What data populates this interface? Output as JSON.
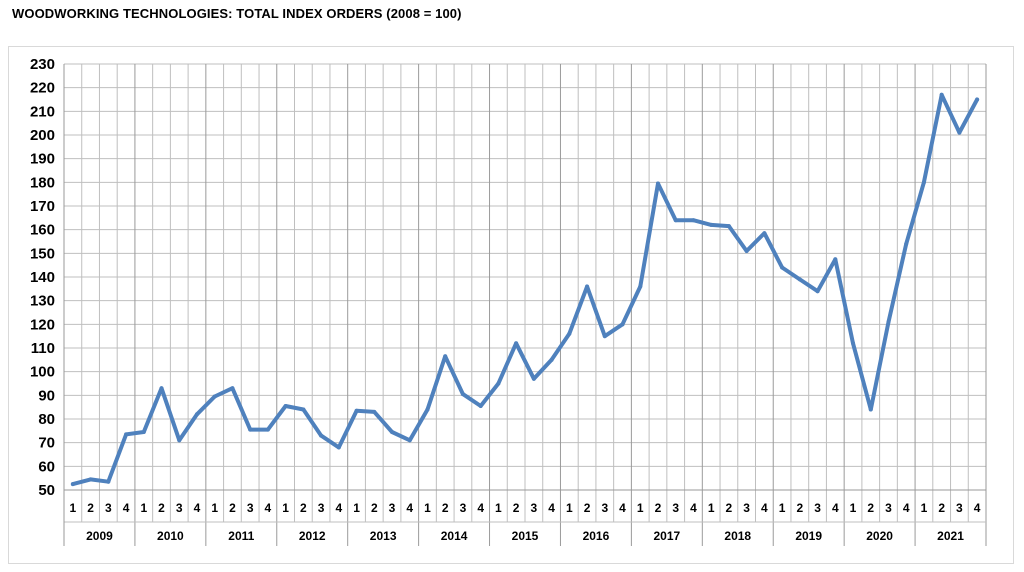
{
  "title": "WOODWORKING TECHNOLOGIES: TOTAL INDEX ORDERS (2008 = 100)",
  "chart_data": {
    "type": "line",
    "title": "WOODWORKING TECHNOLOGIES: TOTAL INDEX ORDERS (2008 = 100)",
    "xlabel": "",
    "ylabel": "",
    "ylim": [
      50,
      230
    ],
    "yticks": [
      50,
      60,
      70,
      80,
      90,
      100,
      110,
      120,
      130,
      140,
      150,
      160,
      170,
      180,
      190,
      200,
      210,
      220,
      230
    ],
    "grid": true,
    "line_color": "#4f81bd",
    "quarters": [
      "1",
      "2",
      "3",
      "4"
    ],
    "years": [
      "2009",
      "2010",
      "2011",
      "2012",
      "2013",
      "2014",
      "2015",
      "2016",
      "2017",
      "2018",
      "2019",
      "2020",
      "2021"
    ],
    "values": [
      52.5,
      54.5,
      53.5,
      73.5,
      74.5,
      93,
      71,
      82,
      89.5,
      93,
      75.5,
      75.5,
      85.5,
      84,
      73,
      68,
      83.5,
      83,
      74.5,
      71,
      84,
      106.5,
      90.5,
      85.5,
      95,
      112,
      97,
      105,
      116,
      136,
      115,
      120,
      136,
      179.5,
      164,
      164,
      162,
      161.5,
      151,
      158.5,
      144,
      139,
      134,
      147.5,
      112,
      84,
      121,
      154,
      180,
      217,
      201,
      215
    ]
  }
}
